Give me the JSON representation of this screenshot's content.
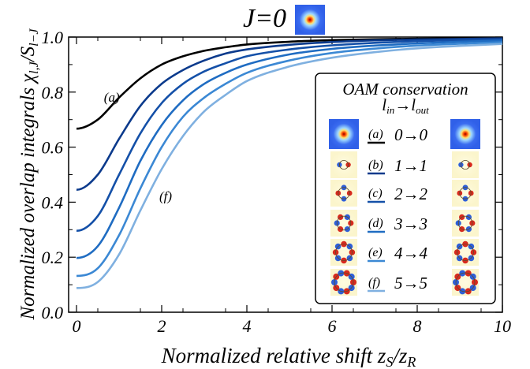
{
  "chart_data": {
    "type": "line",
    "title": "J=0",
    "xlabel": "Normalized relative shift z_S/z_R",
    "ylabel": "Normalized overlap integrals χ_l,J/S_l−J",
    "xlim": [
      0,
      10
    ],
    "ylim": [
      0.0,
      1.0
    ],
    "xticks": [
      "0",
      "2",
      "4",
      "6",
      "8",
      "10"
    ],
    "yticks": [
      "0.0",
      "0.2",
      "0.4",
      "0.6",
      "0.8",
      "1.0"
    ],
    "grid": false,
    "x": [
      0,
      0.5,
      1,
      1.5,
      2,
      2.5,
      3,
      3.5,
      4,
      5,
      6,
      7,
      8,
      9,
      10
    ],
    "series": [
      {
        "name": "(a)",
        "label": "0→0",
        "color": "#000000",
        "values": [
          0.667,
          0.7,
          0.78,
          0.85,
          0.9,
          0.93,
          0.95,
          0.963,
          0.973,
          0.983,
          0.989,
          0.992,
          0.994,
          0.996,
          0.997
        ]
      },
      {
        "name": "(b)",
        "label": "1→1",
        "color": "#0b3a8c",
        "values": [
          0.445,
          0.5,
          0.63,
          0.75,
          0.83,
          0.88,
          0.915,
          0.94,
          0.955,
          0.972,
          0.982,
          0.988,
          0.991,
          0.993,
          0.995
        ]
      },
      {
        "name": "(c)",
        "label": "2→2",
        "color": "#1450a8",
        "values": [
          0.296,
          0.35,
          0.5,
          0.65,
          0.76,
          0.83,
          0.875,
          0.905,
          0.93,
          0.955,
          0.97,
          0.979,
          0.985,
          0.989,
          0.991
        ]
      },
      {
        "name": "(d)",
        "label": "3→3",
        "color": "#1f6cc2",
        "values": [
          0.197,
          0.24,
          0.38,
          0.55,
          0.68,
          0.77,
          0.83,
          0.87,
          0.9,
          0.937,
          0.957,
          0.969,
          0.977,
          0.983,
          0.987
        ]
      },
      {
        "name": "(e)",
        "label": "4→4",
        "color": "#3b88d4",
        "values": [
          0.132,
          0.16,
          0.28,
          0.45,
          0.6,
          0.71,
          0.78,
          0.83,
          0.87,
          0.915,
          0.942,
          0.958,
          0.969,
          0.976,
          0.981
        ]
      },
      {
        "name": "(f)",
        "label": "5→5",
        "color": "#7fb0e0",
        "values": [
          0.088,
          0.11,
          0.21,
          0.37,
          0.52,
          0.64,
          0.73,
          0.79,
          0.84,
          0.893,
          0.925,
          0.945,
          0.959,
          0.968,
          0.975
        ]
      }
    ],
    "annotations": [
      {
        "text": "(a)",
        "x": 0.7,
        "y": 0.78
      },
      {
        "text": "(f)",
        "x": 2.0,
        "y": 0.42
      }
    ],
    "legend": {
      "title_line1": "OAM conservation",
      "title_line2": "l_in→l_out",
      "placement": "bottom-right"
    }
  },
  "icons": {
    "title_thumb": "gaussian-beam-profile-icon",
    "legend_thumbs": [
      "lg-mode-0-icon",
      "lg-mode-1-icon",
      "lg-mode-2-icon",
      "lg-mode-3-icon",
      "lg-mode-4-icon",
      "lg-mode-5-icon"
    ]
  }
}
